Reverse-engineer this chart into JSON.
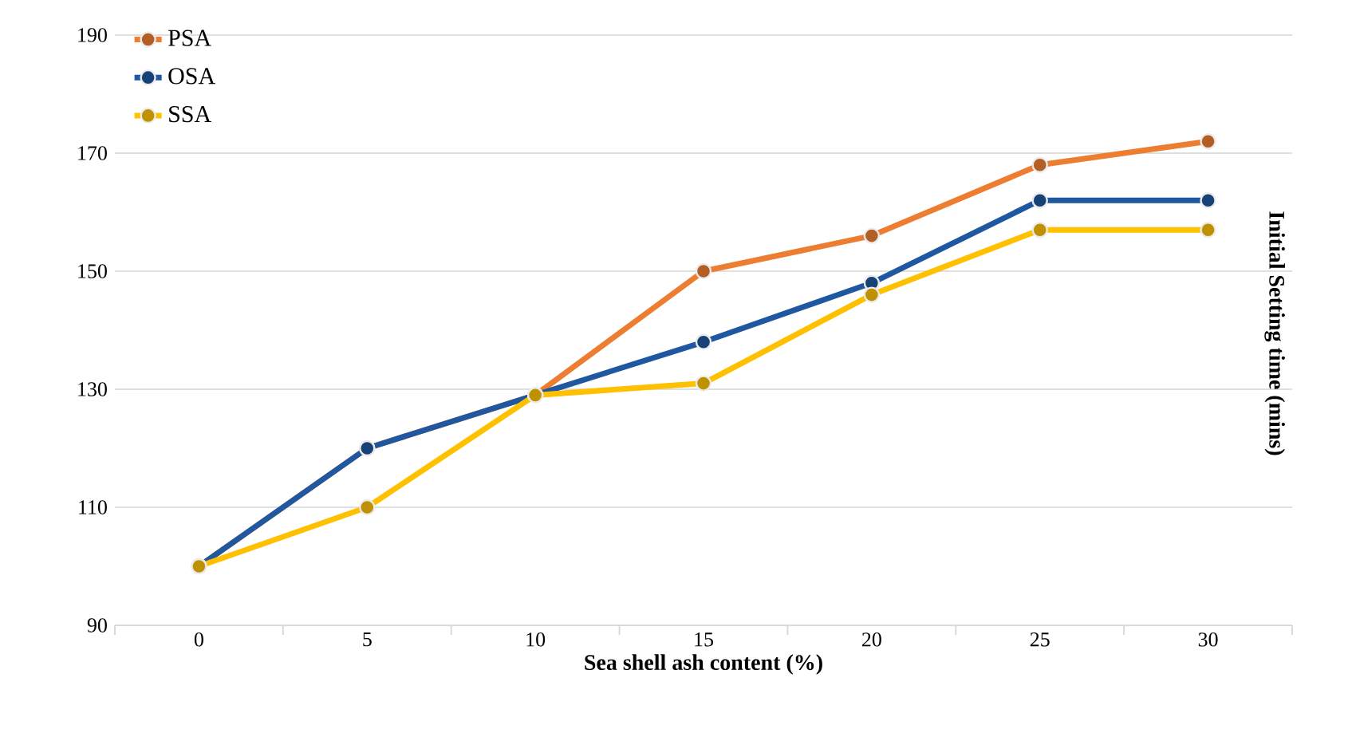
{
  "chart_data": {
    "type": "line",
    "xlabel": "Sea shell ash content (%)",
    "ylabel": "Initial Setting time (mins)",
    "categories": [
      "0",
      "5",
      "10",
      "15",
      "20",
      "25",
      "30"
    ],
    "series": [
      {
        "name": "PSA",
        "color": "#ed7d31",
        "values": [
          100,
          120,
          129,
          150,
          156,
          168,
          172
        ]
      },
      {
        "name": "OSA",
        "color": "#1f58a0",
        "values": [
          100,
          120,
          129,
          138,
          148,
          162,
          162
        ]
      },
      {
        "name": "SSA",
        "color": "#ffc000",
        "values": [
          100,
          110,
          129,
          131,
          146,
          157,
          157
        ]
      }
    ],
    "ylim": [
      90,
      190
    ],
    "yticks": [
      90,
      110,
      130,
      150,
      170,
      190
    ],
    "grid": "y",
    "legend": "top left",
    "marker": "circle",
    "line_style": "solid"
  }
}
